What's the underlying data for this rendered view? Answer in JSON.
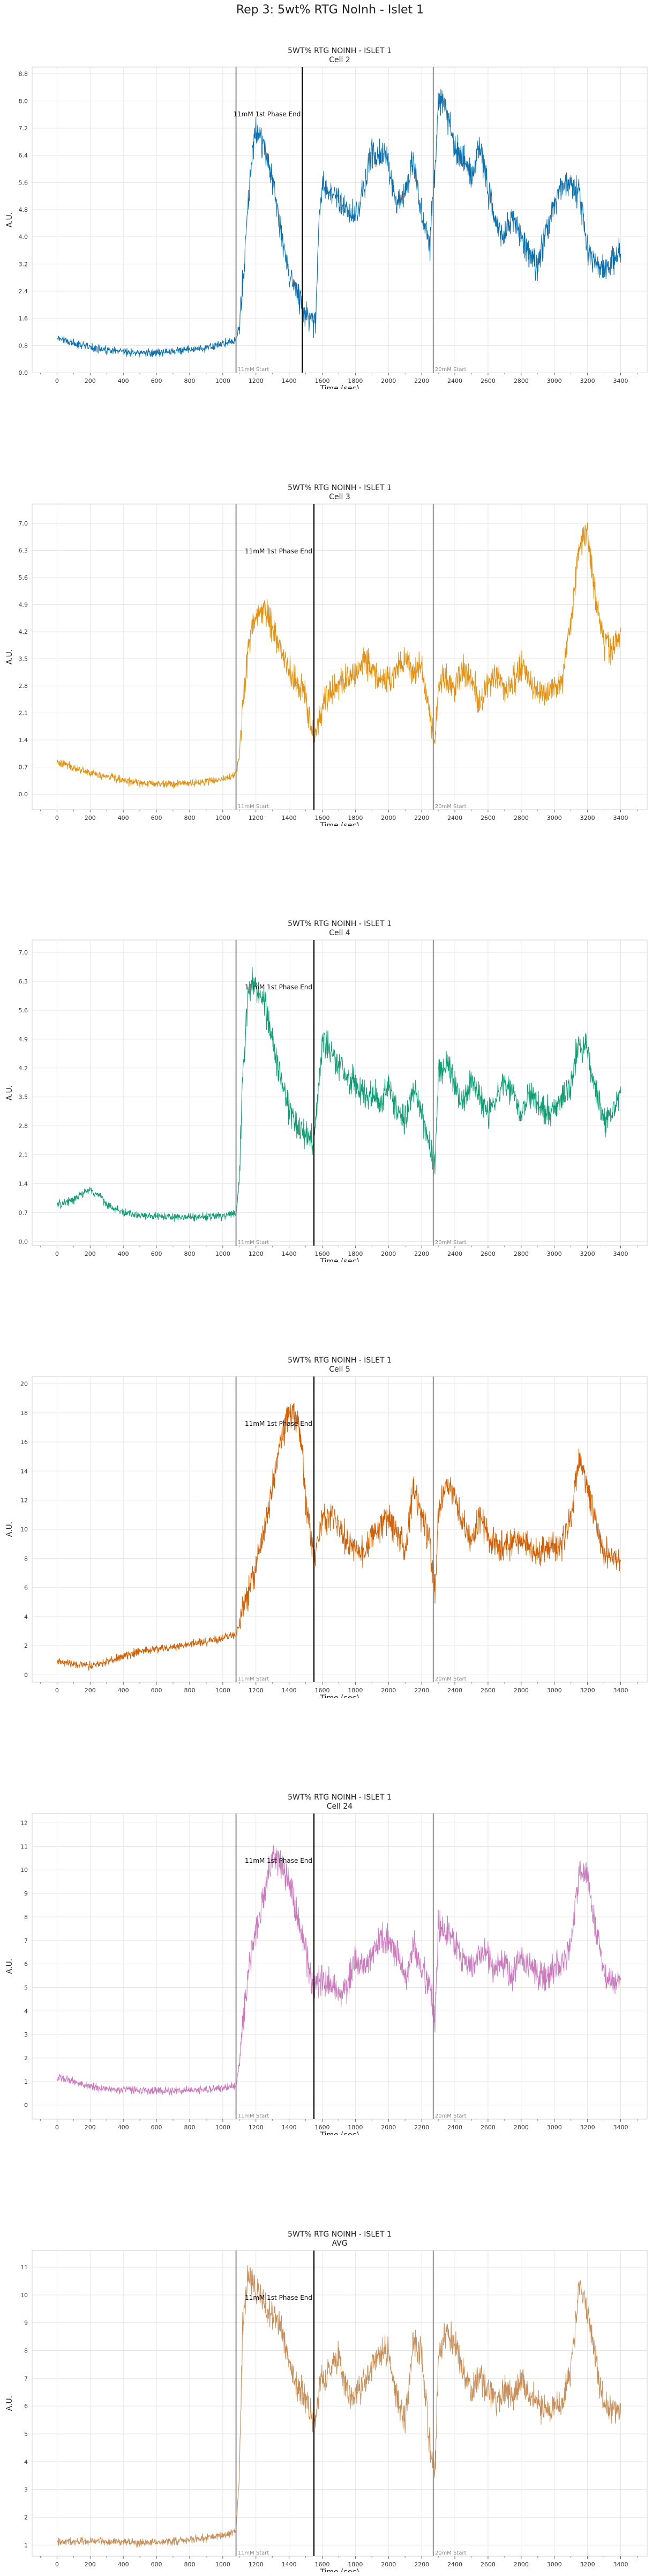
{
  "suptitle": "Rep 3: 5wt% RTG NoInh - Islet 1",
  "shared": {
    "xlabel": "Time (sec)",
    "ylabel": "A.U.",
    "xlim": [
      -150,
      3560
    ],
    "x_ticks": [
      "0",
      "200",
      "400",
      "600",
      "800",
      "1000",
      "1200",
      "1400",
      "1600",
      "1800",
      "2000",
      "2200",
      "2400",
      "2600",
      "2800",
      "3000",
      "3200",
      "3400"
    ],
    "vlines": [
      {
        "x": 1080,
        "label": "11mM Start",
        "color": "#8c8c8c"
      },
      {
        "x": 2270,
        "label": "20mM Start",
        "color": "#8c8c8c"
      }
    ]
  },
  "chart_data": [
    {
      "type": "line",
      "title": "5WT% RTG NOINH - ISLET 1",
      "subtitle": "Cell 2",
      "color": "#0a70b1",
      "ylim": [
        0,
        9.0
      ],
      "y_ticks": [
        "0.0",
        "0.8",
        "1.6",
        "2.4",
        "3.2",
        "4.0",
        "4.8",
        "5.6",
        "6.4",
        "7.2",
        "8.0",
        "8.8"
      ],
      "phase_end": {
        "x": 1480,
        "label": "11mM 1st Phase End"
      },
      "series": [
        {
          "x": [
            0,
            100,
            200,
            300,
            400,
            500,
            600,
            700,
            800,
            900,
            1000,
            1080,
            1100,
            1130,
            1160,
            1190,
            1220,
            1250,
            1300,
            1350,
            1400,
            1450,
            1480,
            1500,
            1530,
            1560,
            1580,
            1600,
            1650,
            1700,
            1750,
            1800,
            1850,
            1900,
            1950,
            2000,
            2050,
            2100,
            2150,
            2200,
            2250,
            2280,
            2300,
            2330,
            2360,
            2400,
            2450,
            2500,
            2550,
            2600,
            2650,
            2700,
            2750,
            2800,
            2850,
            2900,
            2950,
            3000,
            3050,
            3100,
            3150,
            3200,
            3250,
            3300,
            3350,
            3400
          ],
          "y": [
            1.05,
            0.85,
            0.75,
            0.65,
            0.6,
            0.58,
            0.6,
            0.62,
            0.68,
            0.72,
            0.85,
            0.95,
            1.4,
            3.2,
            5.5,
            6.9,
            7.1,
            6.6,
            5.6,
            4.2,
            2.9,
            2.3,
            1.9,
            1.7,
            1.5,
            1.4,
            4.3,
            5.6,
            5.2,
            5.1,
            4.8,
            4.6,
            5.4,
            6.5,
            6.4,
            6.2,
            4.9,
            5.2,
            6.3,
            4.6,
            3.8,
            6.0,
            7.9,
            8.0,
            7.5,
            6.6,
            6.3,
            5.8,
            6.7,
            5.4,
            4.4,
            4.1,
            4.6,
            3.9,
            3.4,
            3.1,
            4.2,
            5.0,
            5.5,
            5.6,
            5.3,
            3.7,
            3.2,
            3.1,
            3.3,
            3.5
          ]
        }
      ]
    },
    {
      "type": "line",
      "title": "5WT% RTG NOINH - ISLET 1",
      "subtitle": "Cell 3",
      "color": "#e5900e",
      "ylim": [
        -0.4,
        7.5
      ],
      "y_ticks": [
        "0.0",
        "0.7",
        "1.4",
        "2.1",
        "2.8",
        "3.5",
        "4.2",
        "4.9",
        "5.6",
        "6.3",
        "7.0"
      ],
      "phase_end": {
        "x": 1550,
        "label": "11mM 1st Phase End"
      },
      "series": [
        {
          "x": [
            0,
            100,
            200,
            300,
            400,
            500,
            600,
            700,
            800,
            900,
            1000,
            1080,
            1100,
            1130,
            1160,
            1200,
            1250,
            1300,
            1350,
            1400,
            1450,
            1500,
            1550,
            1600,
            1650,
            1700,
            1750,
            1800,
            1850,
            1900,
            1950,
            2000,
            2050,
            2100,
            2150,
            2200,
            2250,
            2280,
            2300,
            2350,
            2400,
            2450,
            2500,
            2550,
            2600,
            2650,
            2700,
            2750,
            2800,
            2850,
            2900,
            2950,
            3000,
            3050,
            3100,
            3150,
            3200,
            3250,
            3300,
            3350,
            3400
          ],
          "y": [
            0.85,
            0.7,
            0.55,
            0.45,
            0.35,
            0.3,
            0.28,
            0.27,
            0.28,
            0.32,
            0.4,
            0.5,
            1.0,
            2.8,
            4.0,
            4.7,
            4.8,
            4.3,
            3.7,
            3.2,
            2.9,
            2.5,
            1.5,
            2.2,
            2.6,
            2.9,
            3.0,
            3.1,
            3.4,
            3.3,
            3.0,
            2.9,
            3.2,
            3.5,
            3.0,
            3.4,
            2.0,
            1.4,
            2.8,
            3.0,
            2.7,
            3.3,
            3.0,
            2.4,
            2.8,
            3.1,
            2.7,
            2.9,
            3.3,
            2.9,
            2.7,
            2.6,
            2.8,
            2.9,
            4.5,
            6.3,
            6.8,
            5.0,
            3.9,
            3.7,
            4.2
          ]
        }
      ]
    },
    {
      "type": "line",
      "title": "5WT% RTG NOINH - ISLET 1",
      "subtitle": "Cell 4",
      "color": "#0f9e73",
      "ylim": [
        -0.1,
        7.3
      ],
      "y_ticks": [
        "0.0",
        "0.7",
        "1.4",
        "2.1",
        "2.8",
        "3.5",
        "4.2",
        "4.9",
        "5.6",
        "6.3",
        "7.0"
      ],
      "phase_end": {
        "x": 1550,
        "label": "11mM 1st Phase End"
      },
      "series": [
        {
          "x": [
            0,
            100,
            150,
            200,
            250,
            300,
            350,
            400,
            450,
            500,
            600,
            700,
            800,
            900,
            1000,
            1080,
            1100,
            1120,
            1150,
            1180,
            1200,
            1250,
            1300,
            1350,
            1400,
            1450,
            1500,
            1550,
            1600,
            1650,
            1700,
            1750,
            1800,
            1850,
            1900,
            1950,
            2000,
            2050,
            2100,
            2150,
            2200,
            2250,
            2280,
            2300,
            2350,
            2400,
            2450,
            2500,
            2550,
            2600,
            2650,
            2700,
            2750,
            2800,
            2850,
            2900,
            2950,
            3000,
            3050,
            3100,
            3150,
            3200,
            3250,
            3300,
            3350,
            3400
          ],
          "y": [
            0.9,
            1.0,
            1.15,
            1.25,
            1.1,
            0.9,
            0.8,
            0.7,
            0.65,
            0.62,
            0.6,
            0.58,
            0.58,
            0.6,
            0.62,
            0.7,
            1.5,
            4.0,
            5.8,
            6.3,
            6.2,
            5.8,
            4.9,
            4.0,
            3.2,
            2.8,
            2.6,
            2.4,
            4.9,
            4.6,
            4.3,
            4.0,
            3.8,
            3.5,
            3.6,
            3.3,
            3.8,
            3.2,
            2.9,
            3.7,
            3.1,
            2.3,
            1.8,
            4.0,
            4.4,
            3.8,
            3.3,
            4.0,
            3.5,
            3.1,
            3.5,
            3.9,
            3.6,
            3.0,
            3.6,
            3.3,
            3.1,
            3.2,
            3.5,
            3.8,
            4.9,
            4.6,
            3.6,
            2.9,
            3.2,
            3.6
          ]
        }
      ]
    },
    {
      "type": "line",
      "title": "5WT% RTG NOINH - ISLET 1",
      "subtitle": "Cell 5",
      "color": "#d55e00",
      "ylim": [
        -0.5,
        20.5
      ],
      "y_ticks": [
        "0",
        "2",
        "4",
        "6",
        "8",
        "10",
        "12",
        "14",
        "16",
        "18",
        "20"
      ],
      "phase_end": {
        "x": 1550,
        "label": "11mM 1st Phase End"
      },
      "series": [
        {
          "x": [
            0,
            100,
            200,
            300,
            400,
            500,
            600,
            700,
            800,
            900,
            1000,
            1080,
            1100,
            1150,
            1200,
            1250,
            1300,
            1350,
            1400,
            1450,
            1480,
            1500,
            1550,
            1600,
            1650,
            1700,
            1750,
            1800,
            1850,
            1900,
            1950,
            2000,
            2050,
            2100,
            2150,
            2200,
            2250,
            2280,
            2300,
            2350,
            2400,
            2450,
            2500,
            2550,
            2600,
            2650,
            2700,
            2750,
            2800,
            2850,
            2900,
            2950,
            3000,
            3050,
            3100,
            3150,
            3200,
            3250,
            3300,
            3350,
            3400
          ],
          "y": [
            0.9,
            0.8,
            0.6,
            0.9,
            1.3,
            1.6,
            1.8,
            1.9,
            2.1,
            2.3,
            2.5,
            2.8,
            3.4,
            5.5,
            7.5,
            10.0,
            13.0,
            16.0,
            18.0,
            17.5,
            15.0,
            12.0,
            8.0,
            10.5,
            11.0,
            10.2,
            9.2,
            8.6,
            8.2,
            9.6,
            10.3,
            10.8,
            9.8,
            8.6,
            12.8,
            11.0,
            9.0,
            5.5,
            11.5,
            13.0,
            12.2,
            10.5,
            9.0,
            10.8,
            9.6,
            8.9,
            8.7,
            9.2,
            9.4,
            8.6,
            8.4,
            8.7,
            8.8,
            9.0,
            10.5,
            15.0,
            12.8,
            10.5,
            8.6,
            8.0,
            7.8
          ]
        }
      ]
    },
    {
      "type": "line",
      "title": "5WT% RTG NOINH - ISLET 1",
      "subtitle": "Cell 24",
      "color": "#cc79be",
      "ylim": [
        -0.6,
        12.4
      ],
      "y_ticks": [
        "0",
        "1",
        "2",
        "3",
        "4",
        "5",
        "6",
        "7",
        "8",
        "9",
        "10",
        "11",
        "12"
      ],
      "phase_end": {
        "x": 1550,
        "label": "11mM 1st Phase End"
      },
      "series": [
        {
          "x": [
            0,
            100,
            200,
            300,
            400,
            500,
            600,
            700,
            800,
            900,
            1000,
            1080,
            1100,
            1130,
            1160,
            1200,
            1250,
            1300,
            1350,
            1400,
            1450,
            1500,
            1550,
            1600,
            1650,
            1700,
            1750,
            1800,
            1850,
            1900,
            1950,
            2000,
            2050,
            2100,
            2150,
            2200,
            2250,
            2280,
            2300,
            2350,
            2400,
            2450,
            2500,
            2550,
            2600,
            2650,
            2700,
            2750,
            2800,
            2850,
            2900,
            2950,
            3000,
            3050,
            3100,
            3150,
            3200,
            3250,
            3300,
            3350,
            3400
          ],
          "y": [
            1.2,
            1.0,
            0.8,
            0.7,
            0.65,
            0.62,
            0.6,
            0.6,
            0.62,
            0.65,
            0.7,
            0.8,
            1.8,
            4.2,
            6.0,
            7.5,
            9.0,
            10.5,
            10.2,
            9.5,
            8.0,
            6.5,
            4.8,
            5.5,
            5.2,
            4.6,
            5.0,
            6.3,
            5.7,
            6.4,
            7.1,
            7.2,
            6.4,
            5.4,
            6.8,
            5.8,
            5.0,
            3.5,
            7.6,
            7.4,
            7.0,
            6.2,
            5.9,
            6.6,
            6.3,
            5.7,
            6.0,
            5.5,
            6.3,
            5.8,
            5.6,
            5.4,
            5.8,
            6.0,
            6.8,
            10.0,
            9.8,
            7.5,
            5.6,
            5.2,
            5.4
          ]
        }
      ]
    },
    {
      "type": "line",
      "title": "5WT% RTG NOINH - ISLET 1",
      "subtitle": "AVG",
      "color": "#c98f58",
      "ylim": [
        0.6,
        11.6
      ],
      "y_ticks": [
        "1",
        "2",
        "3",
        "4",
        "5",
        "6",
        "7",
        "8",
        "9",
        "10",
        "11"
      ],
      "phase_end": {
        "x": 1550,
        "label": "11mM 1st Phase End"
      },
      "series": [
        {
          "x": [
            0,
            100,
            200,
            300,
            400,
            500,
            600,
            700,
            800,
            900,
            1000,
            1080,
            1100,
            1120,
            1150,
            1200,
            1250,
            1300,
            1350,
            1400,
            1450,
            1500,
            1550,
            1600,
            1650,
            1700,
            1750,
            1800,
            1850,
            1900,
            1950,
            2000,
            2050,
            2100,
            2150,
            2200,
            2250,
            2280,
            2300,
            2350,
            2400,
            2450,
            2500,
            2550,
            2600,
            2650,
            2700,
            2750,
            2800,
            2850,
            2900,
            2950,
            3000,
            3050,
            3100,
            3150,
            3200,
            3250,
            3300,
            3350,
            3400
          ],
          "y": [
            1.1,
            1.12,
            1.15,
            1.12,
            1.1,
            1.08,
            1.1,
            1.15,
            1.2,
            1.25,
            1.35,
            1.5,
            3.5,
            9.0,
            10.6,
            10.2,
            9.6,
            9.2,
            8.9,
            7.6,
            6.8,
            6.2,
            5.4,
            6.9,
            7.3,
            7.8,
            6.5,
            6.3,
            6.8,
            7.4,
            7.9,
            8.0,
            6.3,
            5.4,
            8.4,
            7.8,
            4.6,
            3.4,
            7.7,
            8.7,
            8.2,
            7.2,
            6.5,
            7.1,
            6.6,
            6.2,
            6.7,
            6.3,
            6.9,
            6.4,
            6.1,
            5.8,
            6.0,
            6.2,
            7.3,
            10.2,
            9.6,
            7.6,
            6.1,
            5.8,
            6.1
          ]
        }
      ]
    }
  ]
}
